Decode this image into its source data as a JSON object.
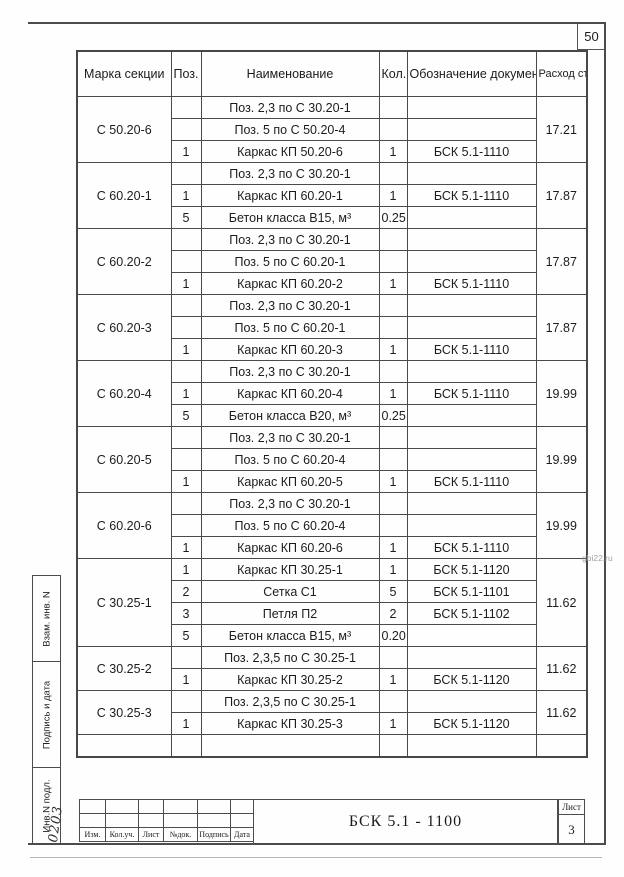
{
  "page": {
    "page_number": "50",
    "watermark": "gbi22.ru"
  },
  "table": {
    "headers": {
      "mark": "Марка секции",
      "pos": "Поз.",
      "name": "Наименование",
      "qty": "Кол.",
      "doc": "Обозначение документа",
      "steel": "Расход стали, кг"
    },
    "sections": [
      {
        "mark": "С 50.20-6",
        "steel": "17.21",
        "rows": [
          {
            "pos": "",
            "name": "Поз. 2,3 по С 30.20-1",
            "qty": "",
            "doc": ""
          },
          {
            "pos": "",
            "name": "Поз. 5 по С 50.20-4",
            "qty": "",
            "doc": ""
          },
          {
            "pos": "1",
            "name": "Каркас КП 50.20-6",
            "qty": "1",
            "doc": "БСК 5.1-1110"
          }
        ]
      },
      {
        "mark": "С 60.20-1",
        "steel": "17.87",
        "rows": [
          {
            "pos": "",
            "name": "Поз. 2,3 по С 30.20-1",
            "qty": "",
            "doc": ""
          },
          {
            "pos": "1",
            "name": "Каркас КП 60.20-1",
            "qty": "1",
            "doc": "БСК 5.1-1110"
          },
          {
            "pos": "5",
            "name": "Бетон класса В15, м³",
            "qty": "0.25",
            "doc": ""
          }
        ]
      },
      {
        "mark": "С 60.20-2",
        "steel": "17.87",
        "rows": [
          {
            "pos": "",
            "name": "Поз. 2,3 по С 30.20-1",
            "qty": "",
            "doc": ""
          },
          {
            "pos": "",
            "name": "Поз. 5 по С 60.20-1",
            "qty": "",
            "doc": ""
          },
          {
            "pos": "1",
            "name": "Каркас КП 60.20-2",
            "qty": "1",
            "doc": "БСК 5.1-1110"
          }
        ]
      },
      {
        "mark": "С 60.20-3",
        "steel": "17.87",
        "rows": [
          {
            "pos": "",
            "name": "Поз. 2,3 по С 30.20-1",
            "qty": "",
            "doc": ""
          },
          {
            "pos": "",
            "name": "Поз. 5 по С 60.20-1",
            "qty": "",
            "doc": ""
          },
          {
            "pos": "1",
            "name": "Каркас КП 60.20-3",
            "qty": "1",
            "doc": "БСК 5.1-1110"
          }
        ]
      },
      {
        "mark": "С 60.20-4",
        "steel": "19.99",
        "rows": [
          {
            "pos": "",
            "name": "Поз. 2,3 по С 30.20-1",
            "qty": "",
            "doc": ""
          },
          {
            "pos": "1",
            "name": "Каркас КП 60.20-4",
            "qty": "1",
            "doc": "БСК 5.1-1110"
          },
          {
            "pos": "5",
            "name": "Бетон класса В20, м³",
            "qty": "0.25",
            "doc": ""
          }
        ]
      },
      {
        "mark": "С 60.20-5",
        "steel": "19.99",
        "rows": [
          {
            "pos": "",
            "name": "Поз. 2,3 по С 30.20-1",
            "qty": "",
            "doc": ""
          },
          {
            "pos": "",
            "name": "Поз. 5 по С 60.20-4",
            "qty": "",
            "doc": ""
          },
          {
            "pos": "1",
            "name": "Каркас КП 60.20-5",
            "qty": "1",
            "doc": "БСК 5.1-1110"
          }
        ]
      },
      {
        "mark": "С 60.20-6",
        "steel": "19.99",
        "rows": [
          {
            "pos": "",
            "name": "Поз. 2,3 по С 30.20-1",
            "qty": "",
            "doc": ""
          },
          {
            "pos": "",
            "name": "Поз. 5 по С 60.20-4",
            "qty": "",
            "doc": ""
          },
          {
            "pos": "1",
            "name": "Каркас КП 60.20-6",
            "qty": "1",
            "doc": "БСК 5.1-1110"
          }
        ]
      },
      {
        "mark": "С 30.25-1",
        "steel": "11.62",
        "rows": [
          {
            "pos": "1",
            "name": "Каркас КП 30.25-1",
            "qty": "1",
            "doc": "БСК 5.1-1120"
          },
          {
            "pos": "2",
            "name": "Сетка  С1",
            "qty": "5",
            "doc": "БСК 5.1-1101"
          },
          {
            "pos": "3",
            "name": "Петля П2",
            "qty": "2",
            "doc": "БСК 5.1-1102"
          },
          {
            "pos": "5",
            "name": "Бетон класса В15, м³",
            "qty": "0.20",
            "doc": ""
          }
        ]
      },
      {
        "mark": "С 30.25-2",
        "steel": "11.62",
        "rows": [
          {
            "pos": "",
            "name": "Поз. 2,3,5 по С 30.25-1",
            "qty": "",
            "doc": ""
          },
          {
            "pos": "1",
            "name": "Каркас КП 30.25-2",
            "qty": "1",
            "doc": "БСК 5.1-1120"
          }
        ]
      },
      {
        "mark": "С 30.25-3",
        "steel": "11.62",
        "rows": [
          {
            "pos": "",
            "name": "Поз. 2,3,5 по С 30.25-1",
            "qty": "",
            "doc": ""
          },
          {
            "pos": "1",
            "name": "Каркас КП 30.25-3",
            "qty": "1",
            "doc": "БСК 5.1-1120"
          }
        ]
      },
      {
        "mark": "",
        "steel": "",
        "rows": [
          {
            "pos": "",
            "name": "",
            "qty": "",
            "doc": ""
          }
        ]
      }
    ]
  },
  "sidebar": {
    "labels": [
      "Взам. инв. N",
      "Подпись и дата",
      "Инв.N подл."
    ],
    "handwritten": "0203"
  },
  "titleblock": {
    "doc_number": "БСК 5.1 - 1100",
    "sheet_label": "Лист",
    "sheet_number": "3",
    "columns": [
      "Изм.",
      "Кол.уч.",
      "Лист",
      "№док.",
      "Подпись",
      "Дата"
    ]
  }
}
